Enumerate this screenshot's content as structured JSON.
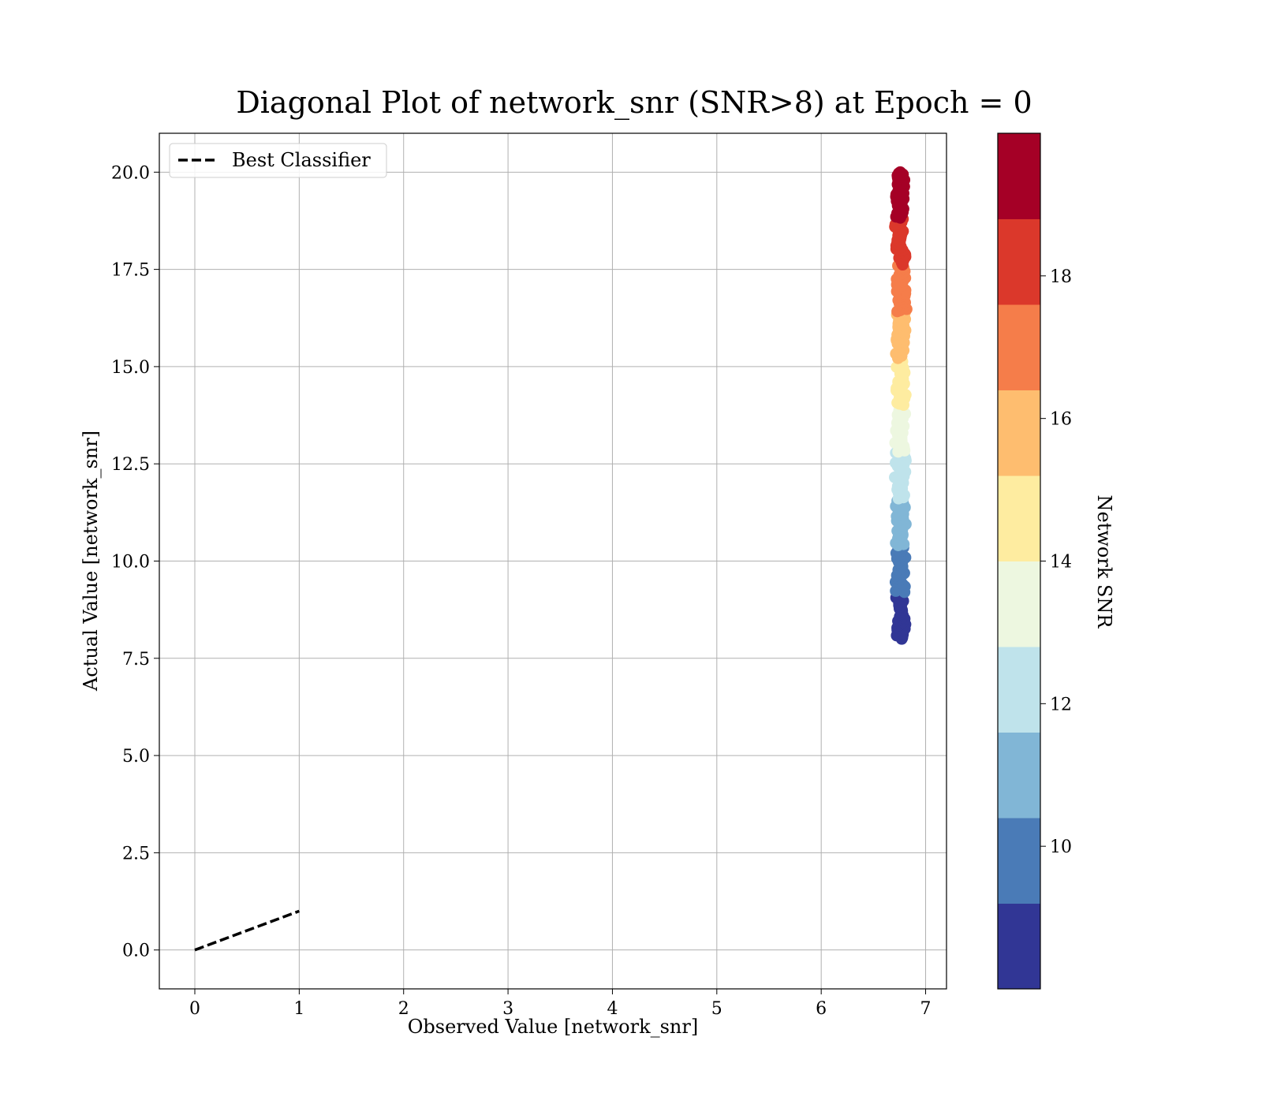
{
  "chart_data": {
    "type": "scatter",
    "title": "Diagonal Plot of network_snr (SNR>8) at Epoch = 0",
    "xlabel": "Observed Value [network_snr]",
    "ylabel": "Actual Value [network_snr]",
    "xlim": [
      -0.34,
      7.2
    ],
    "ylim": [
      -1.0,
      21.0
    ],
    "xticks": [
      "0",
      "1",
      "2",
      "3",
      "4",
      "5",
      "6",
      "7"
    ],
    "yticks": [
      "0.0",
      "2.5",
      "5.0",
      "7.5",
      "10.0",
      "12.5",
      "15.0",
      "17.5",
      "20.0"
    ],
    "grid": true,
    "legend": {
      "position": "top-left",
      "entries": [
        "Best Classifier"
      ]
    },
    "reference_line": {
      "name": "Best Classifier",
      "x": [
        0,
        1
      ],
      "y": [
        0,
        1
      ],
      "style": "dashed",
      "color": "#000000"
    },
    "scatter": {
      "x_center": 6.76,
      "x_spread": 0.06,
      "y_min": 8.0,
      "y_max": 20.0,
      "count": 420
    },
    "colorbar": {
      "label": "Network SNR",
      "range": [
        8.0,
        20.0
      ],
      "ticks": [
        "10",
        "12",
        "14",
        "16",
        "18"
      ],
      "tick_values": [
        10,
        12,
        14,
        16,
        18
      ],
      "colors": [
        "#313695",
        "#4a7bb7",
        "#81b6d6",
        "#bfe3eb",
        "#edf7e0",
        "#feeca0",
        "#febd6f",
        "#f57d4a",
        "#db382b",
        "#a50026"
      ]
    }
  }
}
